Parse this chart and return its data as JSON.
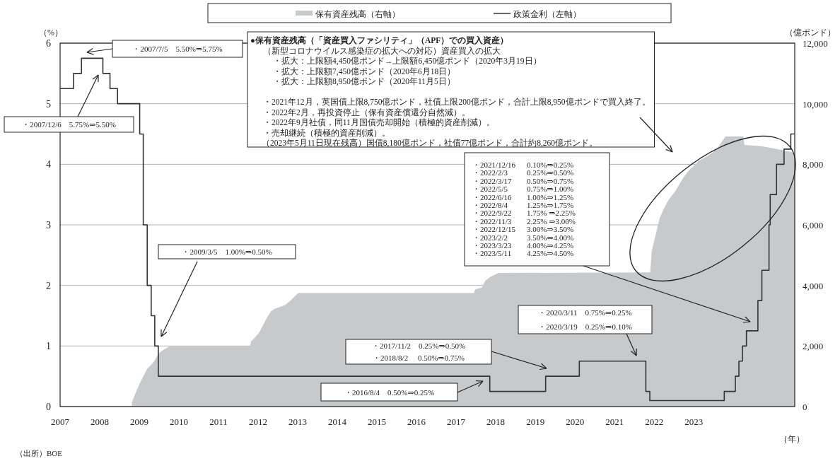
{
  "chart_data": {
    "type": "line",
    "xlabel": "（年）",
    "ylabel": "（%）",
    "y2label": "（億ポンド）",
    "xlim": [
      2007,
      2025.55
    ],
    "xticks": [
      2007,
      2008,
      2009,
      2010,
      2011,
      2012,
      2013,
      2014,
      2015,
      2016,
      2017,
      2018,
      2019,
      2020,
      2021,
      2022,
      2023
    ],
    "ylim": [
      0,
      6
    ],
    "yticks": [
      0,
      1,
      2,
      3,
      4,
      5,
      6
    ],
    "y2lim": [
      0,
      12000
    ],
    "y2ticks": [
      {
        "value": 0,
        "label": "0"
      },
      {
        "value": 2000,
        "label": "2,000"
      },
      {
        "value": 4000,
        "label": "4,000"
      },
      {
        "value": 6000,
        "label": "6,000"
      },
      {
        "value": 8000,
        "label": "8,000"
      },
      {
        "value": 10000,
        "label": "10,000"
      },
      {
        "value": 12000,
        "label": "12,000"
      }
    ],
    "grid": "y",
    "legend": "top",
    "series": [
      {
        "name": "保有資産残高（右軸）",
        "type": "area",
        "axis": "y2",
        "color": "#c8c9cb",
        "x": [
          2008.81,
          2008.91,
          2009.0,
          2009.1,
          2009.2,
          2009.3,
          2009.39,
          2009.48,
          2009.58,
          2009.69,
          2009.79,
          2011.8,
          2011.82,
          2011.92,
          2012.03,
          2012.13,
          2012.23,
          2012.33,
          2012.42,
          2012.68,
          2012.8,
          2012.91,
          2013.01,
          2017.45,
          2017.48,
          2017.65,
          2017.74,
          2017.86,
          2018.07,
          2021.9,
          2021.94,
          2022.04,
          2022.14,
          2022.24,
          2022.34,
          2022.43,
          2022.54,
          2022.64,
          2022.73,
          2022.83,
          2022.93,
          2023.03,
          2023.13,
          2023.33,
          2023.51,
          2023.61,
          2023.8,
          2024.25,
          2024.28,
          2024.71,
          2024.95,
          2025.24,
          2025.48,
          2025.55
        ],
        "values": [
          130,
          460,
          730,
          990,
          1250,
          1380,
          1530,
          1740,
          1850,
          1930,
          2000,
          2000,
          2150,
          2280,
          2450,
          2700,
          2950,
          3150,
          3230,
          3350,
          3480,
          3620,
          3750,
          3750,
          3870,
          3930,
          4160,
          4280,
          4410,
          4430,
          5140,
          5680,
          6230,
          6520,
          6770,
          6940,
          7120,
          7350,
          7540,
          7720,
          7870,
          7980,
          8120,
          8260,
          8430,
          8550,
          8920,
          8920,
          8640,
          8600,
          8540,
          8470,
          8400,
          8320
        ]
      },
      {
        "name": "政策金利（左軸）",
        "type": "step",
        "color": "#333333",
        "x": [
          2007.0,
          2007.34,
          2007.54,
          2008.08,
          2008.26,
          2008.45,
          2009.01,
          2009.1,
          2009.2,
          2009.3,
          2009.39,
          2009.48,
          2017.85,
          2019.26,
          2020.11,
          2021.79,
          2021.89,
          2023.77,
          2024.05,
          2024.14,
          2024.23,
          2024.33,
          2024.62,
          2024.72,
          2024.9,
          2024.93,
          2025.09,
          2025.28,
          2025.45,
          2025.55
        ],
        "values": [
          5.25,
          5.5,
          5.75,
          5.5,
          5.25,
          5.0,
          4.5,
          3.0,
          2.0,
          1.5,
          1.0,
          0.5,
          0.25,
          0.5,
          0.75,
          0.25,
          0.1,
          0.25,
          0.5,
          0.75,
          1.0,
          1.25,
          1.75,
          2.25,
          3.0,
          3.5,
          4.0,
          4.25,
          4.5,
          4.5
        ]
      }
    ],
    "annotations": [
      "・2007/7/5　5.50%⇒5.75%",
      "・2007/12/6　5.75%⇒5.50%",
      "・2009/3/5　1.00%⇒0.50%",
      "・2016/8/4　0.50%⇒0.25%",
      "・2017/11/2　0.25%⇒0.50%",
      "・2018/8/2　 0.50%⇒0.75%",
      "・2020/3/11　0.75%⇒0.25%",
      "・2020/3/19　0.25%⇒0.10%",
      "・2021/12/16 0.10%⇒0.25%",
      "・2022/2/3 0.25%⇒0.50%",
      "・2022/3/17 0.50%⇒0.75%",
      "・2022/5/5 0.75%⇒1.00%",
      "・2022/6/16 1.00%⇒1.25%",
      "・2022/8/4 1.25%⇒1.75%",
      "・2022/9/22 1.75% ⇒2.25%",
      "・2022/11/3 2.25% ⇒3.00%",
      "・2022/12/15 3.00%⇒3.50%",
      "・2023/2/2 3.50%⇒4.00%",
      "・2023/3/23 4.00%⇒4.25%",
      "・2023/5/11 4.25%⇒4.50%",
      "●保有資産残高（「資産買入ファシリティ」（APF）での買入資産）",
      "（新型コロナウイルス感染症の拡大への対応）資産買入の拡大",
      "・拡大：上限額4,450億ポンド→上限額6,450億ポンド（2020年3月19日）",
      "・拡大：上限額7,450億ポンド（2020年6月18日）",
      "・拡大：上限額8,950億ポンド（2020年11月5日）",
      "・2021年12月，英国債上限8,750億ポンド，社債上限200億ポンド，合計上限8,950億ポンドで買入終了。",
      "・2022年2月，再投資停止（保有資産償還分自然減）。",
      "・2022年9月社債，同11月国債売却開始（積極的資産削減）。",
      "・売却継続（積極的資産削減）。",
      "（2023年5月11日現在残高）国債8,180億ポンド，社債77億ポンド，合計約8,260億ポンド。",
      "（出所）BOE"
    ]
  }
}
